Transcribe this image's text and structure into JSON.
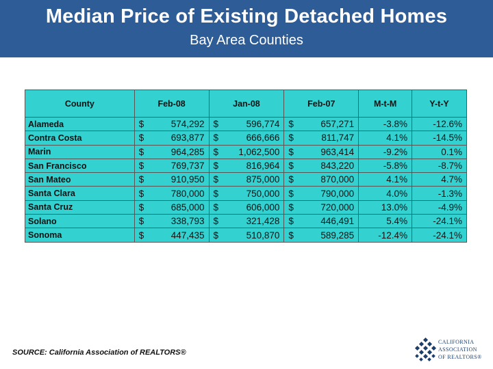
{
  "header": {
    "title": "Median Price of Existing Detached Homes",
    "subtitle": "Bay Area Counties"
  },
  "table": {
    "columns": [
      "County",
      "Feb-08",
      "Jan-08",
      "Feb-07",
      "M-t-M",
      "Y-t-Y"
    ],
    "currency_symbol": "$",
    "rows": [
      {
        "county": "Alameda",
        "feb08": "574,292",
        "jan08": "596,774",
        "feb07": "657,271",
        "mtm": "-3.8%",
        "yty": "-12.6%"
      },
      {
        "county": "Contra Costa",
        "feb08": "693,877",
        "jan08": "666,666",
        "feb07": "811,747",
        "mtm": "4.1%",
        "yty": "-14.5%"
      },
      {
        "county": "Marin",
        "feb08": "964,285",
        "jan08": "1,062,500",
        "feb07": "963,414",
        "mtm": "-9.2%",
        "yty": "0.1%"
      },
      {
        "county": "San Francisco",
        "feb08": "769,737",
        "jan08": "816,964",
        "feb07": "843,220",
        "mtm": "-5.8%",
        "yty": "-8.7%"
      },
      {
        "county": "San Mateo",
        "feb08": "910,950",
        "jan08": "875,000",
        "feb07": "870,000",
        "mtm": "4.1%",
        "yty": "4.7%"
      },
      {
        "county": "Santa Clara",
        "feb08": "780,000",
        "jan08": "750,000",
        "feb07": "790,000",
        "mtm": "4.0%",
        "yty": "-1.3%"
      },
      {
        "county": "Santa Cruz",
        "feb08": "685,000",
        "jan08": "606,000",
        "feb07": "720,000",
        "mtm": "13.0%",
        "yty": "-4.9%"
      },
      {
        "county": "Solano",
        "feb08": "338,793",
        "jan08": "321,428",
        "feb07": "446,491",
        "mtm": "5.4%",
        "yty": "-24.1%"
      },
      {
        "county": "Sonoma",
        "feb08": "447,435",
        "jan08": "510,870",
        "feb07": "589,285",
        "mtm": "-12.4%",
        "yty": "-24.1%"
      }
    ]
  },
  "footer": {
    "source": "SOURCE: California Association of REALTORS®"
  },
  "logo": {
    "line1": "CALIFORNIA",
    "line2": "ASSOCIATION",
    "line3": "OF REALTORS®"
  },
  "colors": {
    "header_bg": "#2e5c96",
    "table_bg": "#34d1d1",
    "logo_blue": "#1a3f6e"
  }
}
